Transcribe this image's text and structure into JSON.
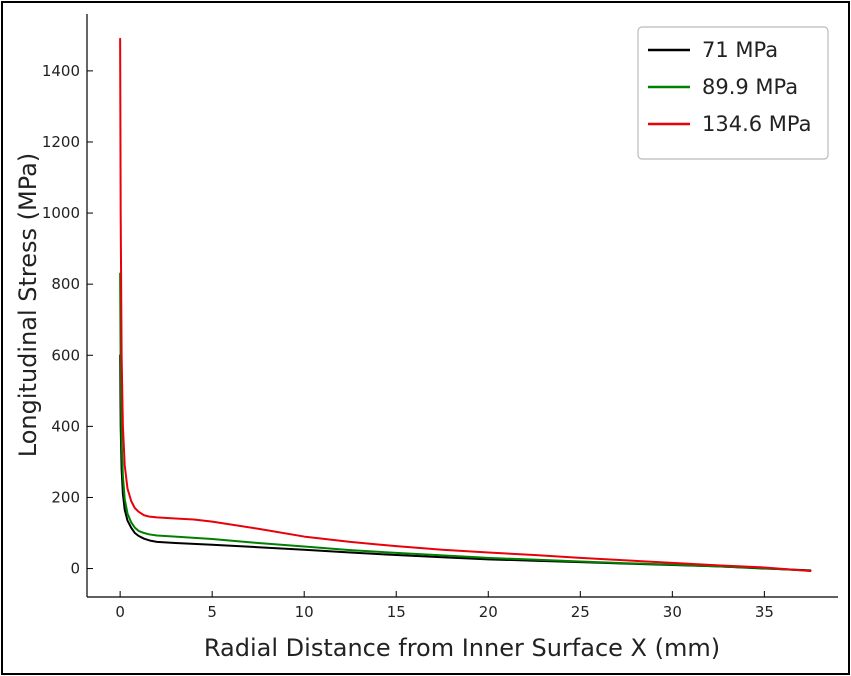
{
  "chart_data": {
    "type": "line",
    "title": "",
    "xlabel": "Radial Distance from Inner Surface X (mm)",
    "ylabel": "Longitudinal Stress (MPa)",
    "xlim": [
      -1.8,
      39
    ],
    "ylim": [
      -80,
      1560
    ],
    "xticks": [
      0,
      5,
      10,
      15,
      20,
      25,
      30,
      35
    ],
    "yticks": [
      0,
      200,
      400,
      600,
      800,
      1000,
      1200,
      1400
    ],
    "grid": false,
    "legend_position": "top-right",
    "series": [
      {
        "name": "71 MPa",
        "color": "#000000",
        "x": [
          0,
          0.03,
          0.08,
          0.15,
          0.25,
          0.4,
          0.6,
          0.8,
          1.0,
          1.3,
          1.6,
          2.0,
          3,
          5,
          7.5,
          10,
          12.5,
          15,
          17.5,
          20,
          22.5,
          25,
          27.5,
          30,
          32.5,
          35,
          37.5
        ],
        "y": [
          600,
          400,
          280,
          210,
          165,
          135,
          115,
          100,
          92,
          84,
          79,
          75,
          72,
          67,
          60,
          53,
          45,
          38,
          32,
          26,
          22,
          18,
          14,
          10,
          6,
          0,
          -5
        ]
      },
      {
        "name": "89.9 MPa",
        "color": "#008000",
        "x": [
          0,
          0.03,
          0.08,
          0.15,
          0.25,
          0.4,
          0.6,
          0.8,
          1.0,
          1.3,
          1.6,
          2.0,
          3,
          5,
          7.5,
          10,
          12.5,
          15,
          17.5,
          20,
          22.5,
          25,
          27.5,
          30,
          32.5,
          35,
          37.5
        ],
        "y": [
          830,
          560,
          360,
          260,
          195,
          155,
          130,
          115,
          106,
          100,
          96,
          93,
          90,
          83,
          72,
          62,
          52,
          44,
          37,
          30,
          25,
          20,
          15,
          11,
          6,
          1,
          -6
        ]
      },
      {
        "name": "134.6 MPa",
        "color": "#e8000b",
        "x": [
          0,
          0.03,
          0.08,
          0.15,
          0.25,
          0.4,
          0.6,
          0.8,
          1.0,
          1.3,
          1.6,
          2.0,
          3,
          4,
          5,
          7.5,
          10,
          12.5,
          15,
          17.5,
          20,
          22.5,
          25,
          27.5,
          30,
          32.5,
          35,
          37.5
        ],
        "y": [
          1490,
          1000,
          600,
          400,
          290,
          225,
          190,
          170,
          160,
          150,
          146,
          144,
          141,
          138,
          132,
          112,
          90,
          75,
          63,
          53,
          45,
          38,
          30,
          23,
          16,
          9,
          3,
          -7
        ]
      }
    ]
  }
}
